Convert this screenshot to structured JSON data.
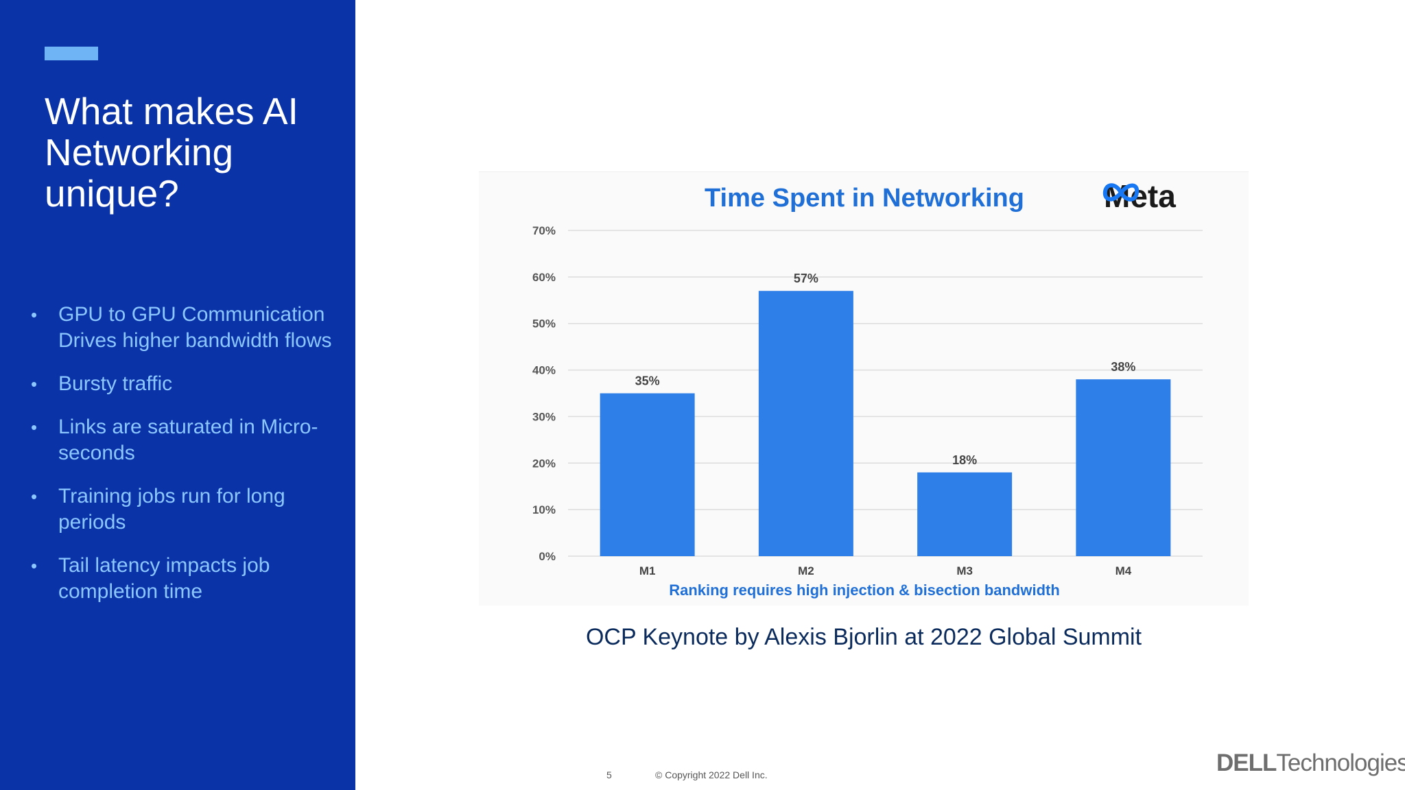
{
  "slide": {
    "title": "What makes AI Networking unique?",
    "bullets": [
      "GPU to GPU Communication Drives higher bandwidth flows",
      "Bursty traffic",
      "Links are saturated in Micro-seconds",
      "Training jobs run for long periods",
      "Tail latency impacts job completion time"
    ],
    "caption": "OCP Keynote by Alexis Bjorlin at 2022 Global Summit",
    "page_number": "5",
    "copyright": "© Copyright 2022 Dell Inc.",
    "logo_dell": "DELL",
    "logo_technologies": "Technologies"
  },
  "colors": {
    "sidebar": "#0b33a8",
    "accent": "#6fb4f4",
    "bullet_text": "#8cc7ff",
    "bar": "#2e7fe8",
    "chart_title": "#1f6fd6"
  },
  "meta": {
    "label": "Meta",
    "icon": "meta-infinity-icon"
  },
  "chart_data": {
    "type": "bar",
    "title": "Time Spent in Networking",
    "subtitle": "Ranking requires high injection & bisection bandwidth",
    "categories": [
      "M1",
      "M2",
      "M3",
      "M4"
    ],
    "values": [
      35,
      57,
      18,
      38
    ],
    "value_labels": [
      "35%",
      "57%",
      "18%",
      "38%"
    ],
    "yticks": [
      "0%",
      "10%",
      "20%",
      "30%",
      "40%",
      "50%",
      "60%",
      "70%"
    ],
    "ylim": [
      0,
      70
    ],
    "grid": true,
    "legend": "none"
  }
}
